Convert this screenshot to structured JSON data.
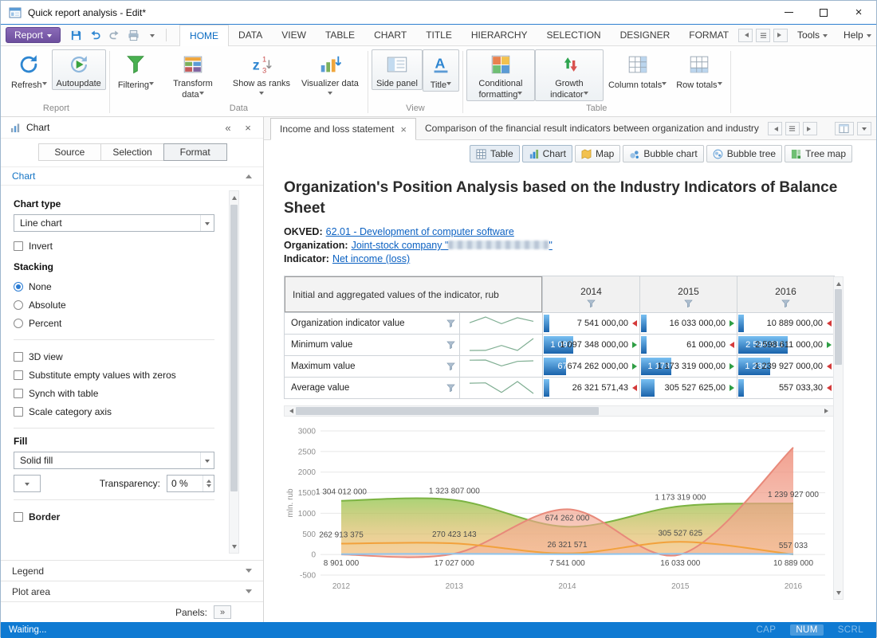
{
  "window": {
    "title": "Quick report analysis - Edit*"
  },
  "colors": {
    "accent": "#0a6bc2",
    "status_bar": "#0f7ad2",
    "link": "#0b61c2",
    "bar_top": "#79c0f2",
    "bar_bottom": "#1a63ab",
    "trend_up": "#2e9e44",
    "trend_down": "#d43a3a"
  },
  "ribbon": {
    "report_button": "Report",
    "tools_label": "Tools",
    "help_label": "Help",
    "tabs": [
      {
        "label": "HOME",
        "active": true
      },
      {
        "label": "DATA"
      },
      {
        "label": "VIEW"
      },
      {
        "label": "TABLE"
      },
      {
        "label": "CHART"
      },
      {
        "label": "TITLE"
      },
      {
        "label": "HIERARCHY"
      },
      {
        "label": "SELECTION"
      },
      {
        "label": "DESIGNER"
      },
      {
        "label": "FORMAT"
      }
    ],
    "groups": [
      {
        "label": "Report",
        "buttons": [
          {
            "label": "Refresh",
            "icon": "refresh",
            "dropdown": true
          },
          {
            "label": "Autoupdate",
            "icon": "autoupdate",
            "active": true
          }
        ]
      },
      {
        "label": "Data",
        "buttons": [
          {
            "label": "Filtering",
            "icon": "filtering",
            "dropdown": true
          },
          {
            "label": "Transform data",
            "icon": "transform",
            "dropdown": true
          },
          {
            "label": "Show as ranks",
            "icon": "ranks",
            "dropdown": true
          },
          {
            "label": "Visualizer data",
            "icon": "visualizer",
            "dropdown": true
          }
        ]
      },
      {
        "label": "View",
        "buttons": [
          {
            "label": "Side panel",
            "icon": "sidepanel",
            "active": true
          },
          {
            "label": "Title",
            "icon": "titleicon",
            "dropdown": true,
            "active": true
          }
        ]
      },
      {
        "label": "Table",
        "buttons": [
          {
            "label": "Conditional formatting",
            "icon": "condfmt",
            "dropdown": true,
            "active": true
          },
          {
            "label": "Growth indicator",
            "icon": "growth",
            "dropdown": true,
            "active": true
          },
          {
            "label": "Column totals",
            "icon": "coltotals",
            "dropdown": true
          },
          {
            "label": "Row totals",
            "icon": "rowtotals",
            "dropdown": true
          }
        ]
      }
    ]
  },
  "panel": {
    "title": "Chart",
    "tabs": [
      {
        "label": "Source"
      },
      {
        "label": "Selection"
      },
      {
        "label": "Format",
        "active": true
      }
    ],
    "section_title": "Chart",
    "chart_type_label": "Chart type",
    "chart_type_value": "Line chart",
    "invert_label": "Invert",
    "stacking_label": "Stacking",
    "stacking_options": [
      {
        "label": "None",
        "selected": true
      },
      {
        "label": "Absolute"
      },
      {
        "label": "Percent"
      }
    ],
    "option_checkboxes": [
      "3D view",
      "Substitute empty values with zeros",
      "Synch with table",
      "Scale category axis"
    ],
    "fill_label": "Fill",
    "fill_value": "Solid fill",
    "transparency_label": "Transparency:",
    "transparency_value": "0 %",
    "border_label": "Border",
    "collapsed_sections": [
      "Legend",
      "Plot area"
    ],
    "panels_label": "Panels:"
  },
  "doc": {
    "tabs": [
      {
        "label": "Income and loss statement",
        "active": true,
        "closable": true
      },
      {
        "label": "Comparison of the financial result indicators between organization and industry"
      }
    ],
    "view_buttons": [
      {
        "label": "Table",
        "icon": "vtable",
        "active": true
      },
      {
        "label": "Chart",
        "icon": "vchart",
        "active": true
      },
      {
        "label": "Map",
        "icon": "vmap"
      },
      {
        "label": "Bubble chart",
        "icon": "vbubble"
      },
      {
        "label": "Bubble tree",
        "icon": "vbubbletree"
      },
      {
        "label": "Tree map",
        "icon": "vtreemap"
      }
    ],
    "title": "Organization's Position Analysis based on the Industry Indicators of Balance Sheet",
    "meta": [
      {
        "label": "OKVED:",
        "value": "62.01 - Development of computer software"
      },
      {
        "label": "Organization:",
        "prefix": "Joint-stock company \"",
        "suffix": "\"",
        "redacted": true
      },
      {
        "label": "Indicator:",
        "value": "Net income (loss)"
      }
    ]
  },
  "table": {
    "corner_header": "Initial and aggregated values of the indicator, rub",
    "year_columns": [
      "2014",
      "2015",
      "2016"
    ],
    "max_value": 2598611000,
    "rows": [
      {
        "label": "Organization indicator value",
        "series": "Organization indicator value",
        "cells": [
          {
            "text": "7 541 000,00",
            "value": 7541000,
            "trend": "down"
          },
          {
            "text": "16 033 000,00",
            "value": 16033000,
            "trend": "up"
          },
          {
            "text": "10 889 000,00",
            "value": 10889000,
            "trend": "down"
          }
        ]
      },
      {
        "label": "Minimum value",
        "series": "Minimum value",
        "cells": [
          {
            "text": "1 097 348 000,00",
            "value": 1097348000,
            "trend": "up"
          },
          {
            "text": "61 000,00",
            "value": 61000,
            "trend": "down"
          },
          {
            "text": "2 598 611 000,00",
            "value": 2598611000,
            "trend": "up"
          }
        ]
      },
      {
        "label": "Maximum value",
        "series": "Maximum value",
        "cells": [
          {
            "text": "674 262 000,00",
            "value": 674262000,
            "trend": "up"
          },
          {
            "text": "1 173 319 000,00",
            "value": 1173319000,
            "trend": "up"
          },
          {
            "text": "1 239 927 000,00",
            "value": 1239927000,
            "trend": "down"
          }
        ]
      },
      {
        "label": "Average value",
        "series": "Average value",
        "cells": [
          {
            "text": "26 321 571,43",
            "value": 26321571.43,
            "trend": "down"
          },
          {
            "text": "305 527 625,00",
            "value": 305527625,
            "trend": "up"
          },
          {
            "text": "557 033,30",
            "value": 557033.3,
            "trend": "down"
          }
        ]
      }
    ]
  },
  "chart_data": {
    "type": "area",
    "x": [
      "2012",
      "2013",
      "2014",
      "2015",
      "2016"
    ],
    "ylabel": "mln. rub",
    "ylim": [
      -500,
      3000
    ],
    "yticks": [
      3000,
      2500,
      2000,
      1500,
      1000,
      500,
      0,
      -500
    ],
    "grid": true,
    "legend": false,
    "series": [
      {
        "name": "Maximum value",
        "color": "#7cb342",
        "fill": "green",
        "label_pos": "above",
        "values": [
          1304.012,
          1323.807,
          674.262,
          1173.319,
          1239.927
        ],
        "labels": [
          "1 304 012 000",
          "1 323 807 000",
          "674 262 000",
          "1 173 319 000",
          "1 239 927 000"
        ]
      },
      {
        "name": "Minimum value",
        "color": "#e8897a",
        "fill": "red",
        "label_pos": "none",
        "values": [
          0,
          20,
          1097.348,
          0.061,
          2598.611
        ],
        "labels": []
      },
      {
        "name": "Average value",
        "color": "#f2a13c",
        "fill": "none",
        "label_pos": "above",
        "values": [
          262.913375,
          270.423143,
          26.321571,
          305.527625,
          0.557033
        ],
        "labels": [
          "262 913 375",
          "270 423 143",
          "26 321 571",
          "305 527 625",
          "557 033"
        ]
      },
      {
        "name": "Organization indicator value",
        "color": "#8fc5ee",
        "fill": "none",
        "label_pos": "below-axis",
        "values": [
          8.901,
          17.027,
          7.541,
          16.033,
          10.889
        ],
        "labels": [
          "8 901 000",
          "17 027 000",
          "7 541 000",
          "16 033 000",
          "10 889 000"
        ]
      }
    ]
  },
  "status": {
    "text": "Waiting...",
    "indicators": [
      {
        "label": "CAP",
        "state": "dim"
      },
      {
        "label": "NUM",
        "state": "on"
      },
      {
        "label": "SCRL",
        "state": "dim"
      }
    ]
  }
}
